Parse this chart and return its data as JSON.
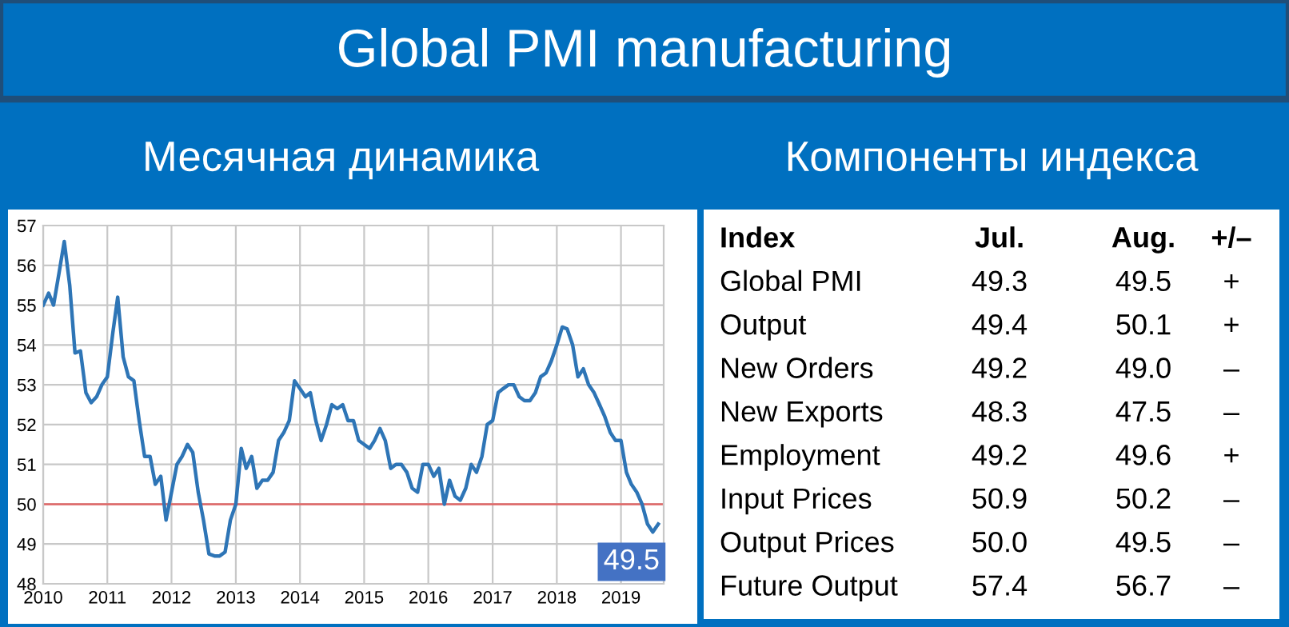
{
  "chart_data": [
    {
      "type": "line",
      "title": "Global PMI manufacturing",
      "subtitle": "Месячная динамика",
      "x": [
        "2010-01",
        "2010-02",
        "2010-03",
        "2010-04",
        "2010-05",
        "2010-06",
        "2010-07",
        "2010-08",
        "2010-09",
        "2010-10",
        "2010-11",
        "2010-12",
        "2011-01",
        "2011-02",
        "2011-03",
        "2011-04",
        "2011-05",
        "2011-06",
        "2011-07",
        "2011-08",
        "2011-09",
        "2011-10",
        "2011-11",
        "2011-12",
        "2012-01",
        "2012-02",
        "2012-03",
        "2012-04",
        "2012-05",
        "2012-06",
        "2012-07",
        "2012-08",
        "2012-09",
        "2012-10",
        "2012-11",
        "2012-12",
        "2013-01",
        "2013-02",
        "2013-03",
        "2013-04",
        "2013-05",
        "2013-06",
        "2013-07",
        "2013-08",
        "2013-09",
        "2013-10",
        "2013-11",
        "2013-12",
        "2014-01",
        "2014-02",
        "2014-03",
        "2014-04",
        "2014-05",
        "2014-06",
        "2014-07",
        "2014-08",
        "2014-09",
        "2014-10",
        "2014-11",
        "2014-12",
        "2015-01",
        "2015-02",
        "2015-03",
        "2015-04",
        "2015-05",
        "2015-06",
        "2015-07",
        "2015-08",
        "2015-09",
        "2015-10",
        "2015-11",
        "2015-12",
        "2016-01",
        "2016-02",
        "2016-03",
        "2016-04",
        "2016-05",
        "2016-06",
        "2016-07",
        "2016-08",
        "2016-09",
        "2016-10",
        "2016-11",
        "2016-12",
        "2017-01",
        "2017-02",
        "2017-03",
        "2017-04",
        "2017-05",
        "2017-06",
        "2017-07",
        "2017-08",
        "2017-09",
        "2017-10",
        "2017-11",
        "2017-12",
        "2018-01",
        "2018-02",
        "2018-03",
        "2018-04",
        "2018-05",
        "2018-06",
        "2018-07",
        "2018-08",
        "2018-09",
        "2018-10",
        "2018-11",
        "2018-12",
        "2019-01",
        "2019-02",
        "2019-03",
        "2019-04",
        "2019-05",
        "2019-06",
        "2019-07",
        "2019-08"
      ],
      "series": [
        {
          "color": "#2e75b6",
          "values": [
            55.0,
            55.3,
            55.0,
            55.8,
            56.6,
            55.5,
            53.8,
            53.85,
            52.8,
            52.55,
            52.7,
            53.0,
            53.2,
            54.3,
            55.2,
            53.7,
            53.2,
            53.1,
            52.1,
            51.2,
            51.2,
            50.5,
            50.7,
            49.6,
            50.3,
            51.0,
            51.2,
            51.5,
            51.3,
            50.3,
            49.6,
            48.75,
            48.7,
            48.7,
            48.8,
            49.6,
            50.0,
            51.4,
            50.9,
            51.2,
            50.4,
            50.6,
            50.6,
            50.8,
            51.6,
            51.8,
            52.1,
            53.1,
            52.9,
            52.7,
            52.8,
            52.1,
            51.6,
            52.0,
            52.5,
            52.4,
            52.5,
            52.1,
            52.1,
            51.6,
            51.5,
            51.4,
            51.6,
            51.9,
            51.6,
            50.9,
            51.0,
            51.0,
            50.8,
            50.4,
            50.3,
            51.0,
            51.0,
            50.7,
            50.9,
            50.0,
            50.6,
            50.2,
            50.1,
            50.4,
            51.0,
            50.8,
            51.2,
            52.0,
            52.1,
            52.8,
            52.9,
            53.0,
            53.0,
            52.7,
            52.6,
            52.6,
            52.8,
            53.2,
            53.3,
            53.6,
            54.0,
            54.45,
            54.4,
            54.0,
            53.2,
            53.4,
            53.0,
            52.8,
            52.5,
            52.2,
            51.8,
            51.6,
            51.6,
            50.8,
            50.5,
            50.3,
            50.0,
            49.5,
            49.3,
            49.5
          ]
        }
      ],
      "xlim": [
        "2010-01",
        "2019-09"
      ],
      "xticks": [
        {
          "value": "2010-01",
          "label": "2010"
        },
        {
          "value": "2011-01",
          "label": "2011"
        },
        {
          "value": "2012-01",
          "label": "2012"
        },
        {
          "value": "2013-01",
          "label": "2013"
        },
        {
          "value": "2014-01",
          "label": "2014"
        },
        {
          "value": "2015-01",
          "label": "2015"
        },
        {
          "value": "2016-01",
          "label": "2016"
        },
        {
          "value": "2017-01",
          "label": "2017"
        },
        {
          "value": "2018-01",
          "label": "2018"
        },
        {
          "value": "2019-01",
          "label": "2019"
        }
      ],
      "ylim": [
        48,
        57
      ],
      "yticks": [
        48,
        49,
        50,
        51,
        52,
        53,
        54,
        55,
        56,
        57
      ],
      "ref_lines": [
        {
          "axis": "y",
          "value": 50,
          "color": "#e06666"
        }
      ],
      "annotations": [
        {
          "text": "49.5",
          "x": "2019-08",
          "y": 49.5
        }
      ],
      "grid": true,
      "legend": false,
      "marker": "none",
      "line_style": "solid"
    },
    {
      "type": "other",
      "title": "Компоненты индекса",
      "legend_title": "Index",
      "categories": [
        "Global PMI",
        "Output",
        "New Orders",
        "New Exports",
        "Employment",
        "Input Prices",
        "Output Prices",
        "Future Output"
      ],
      "series": [
        {
          "name": "Jul.",
          "values": [
            49.3,
            49.4,
            49.2,
            48.3,
            49.2,
            50.9,
            50.0,
            57.4
          ],
          "value_labels": [
            "49.3",
            "49.4",
            "49.2",
            "48.3",
            "49.2",
            "50.9",
            "50.0",
            "57.4"
          ]
        },
        {
          "name": "Aug.",
          "values": [
            49.5,
            50.1,
            49.0,
            47.5,
            49.6,
            50.2,
            49.5,
            56.7
          ],
          "value_labels": [
            "49.5",
            "50.1",
            "49.0",
            "47.5",
            "49.6",
            "50.2",
            "49.5",
            "56.7"
          ]
        },
        {
          "name": "+/–",
          "values": [
            null,
            null,
            null,
            null,
            null,
            null,
            null,
            null
          ],
          "value_labels": [
            "+",
            "+",
            "–",
            "–",
            "+",
            "–",
            "–",
            "–"
          ]
        }
      ]
    }
  ]
}
